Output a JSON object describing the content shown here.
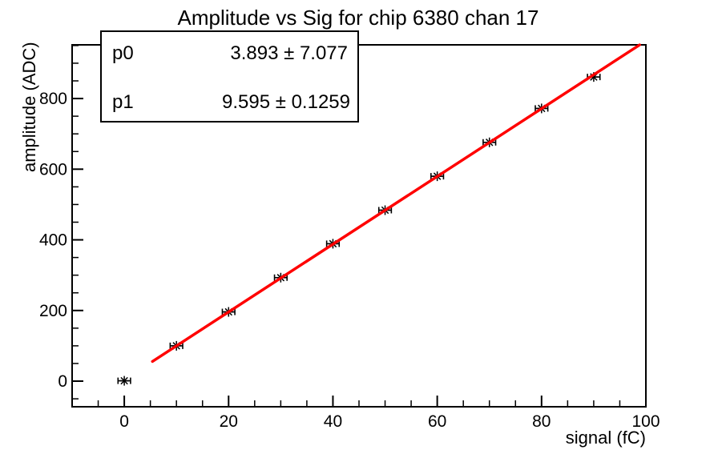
{
  "title": "Amplitude vs Sig for chip 6380 chan 17",
  "stats_box": {
    "rows": [
      {
        "param": "p0",
        "value": "3.893 ± 7.077"
      },
      {
        "param": "p1",
        "value": "9.595 ± 0.1259"
      }
    ]
  },
  "chart_data": {
    "type": "scatter",
    "title": "Amplitude vs Sig for chip 6380 chan 17",
    "xlabel": "signal (fC)",
    "ylabel": "amplitude (ADC)",
    "xlim": [
      -10,
      100
    ],
    "ylim": [
      -72.5,
      952
    ],
    "x_major_ticks": [
      0,
      20,
      40,
      60,
      80,
      100
    ],
    "x_minor_step": 5,
    "y_major_ticks": [
      0,
      200,
      400,
      600,
      800
    ],
    "y_minor_step": 50,
    "grid": false,
    "points": {
      "x": [
        0,
        10,
        20,
        30,
        40,
        50,
        60,
        70,
        80,
        90
      ],
      "y": [
        1,
        100,
        196,
        293,
        389,
        484,
        580,
        676,
        772,
        861
      ],
      "xerr": 1.2
    },
    "fit": {
      "model": "p0 + p1*x",
      "p0": 3.893,
      "p1": 9.595,
      "draw_range": [
        5.4,
        98.8
      ],
      "color": "#ff0000"
    },
    "marker": {
      "style": "asterisk",
      "color": "#000000"
    },
    "legend_position": "stats-box-top-left"
  },
  "colors": {
    "background": "#ffffff",
    "axes": "#000000",
    "text": "#000000",
    "fit_line": "#ff0000",
    "marker": "#000000"
  }
}
